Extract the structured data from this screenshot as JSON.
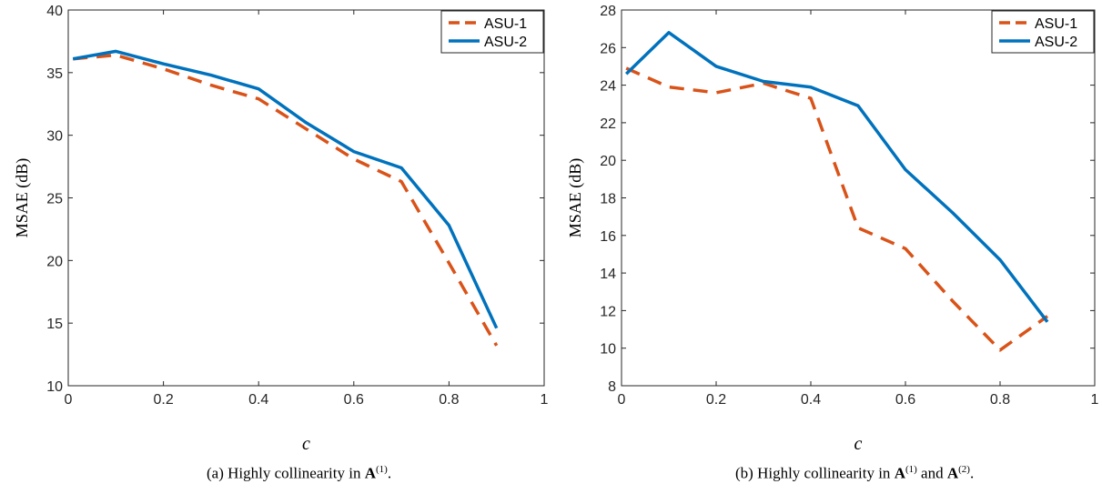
{
  "chart_data": [
    {
      "type": "line",
      "panel": "a",
      "xlabel": "c",
      "ylabel": "MSAE (dB)",
      "xlim": [
        0,
        1
      ],
      "ylim": [
        10,
        40
      ],
      "xticks": [
        0,
        0.2,
        0.4,
        0.6,
        0.8,
        1
      ],
      "xtick_labels": [
        "0",
        "0.2",
        "0.4",
        "0.6",
        "0.8",
        "1"
      ],
      "yticks": [
        10,
        15,
        20,
        25,
        30,
        35,
        40
      ],
      "ytick_labels": [
        "10",
        "15",
        "20",
        "25",
        "30",
        "35",
        "40"
      ],
      "x": [
        0.01,
        0.1,
        0.2,
        0.3,
        0.4,
        0.5,
        0.6,
        0.7,
        0.8,
        0.9
      ],
      "series": [
        {
          "name": "ASU-1",
          "style": "dashed",
          "color": "#D95319",
          "values": [
            36.1,
            36.4,
            35.3,
            34.0,
            32.9,
            30.5,
            28.1,
            26.3,
            19.8,
            13.2
          ]
        },
        {
          "name": "ASU-2",
          "style": "solid",
          "color": "#0072BD",
          "values": [
            36.1,
            36.7,
            35.7,
            34.8,
            33.7,
            31.0,
            28.7,
            27.4,
            22.8,
            14.6
          ]
        }
      ],
      "legend": "top-right",
      "grid": false,
      "caption": {
        "prefix": "(a)  Highly collinearity in ",
        "matrix": "A",
        "sup1": "(1)",
        "suffix": "."
      }
    },
    {
      "type": "line",
      "panel": "b",
      "xlabel": "c",
      "ylabel": "MSAE (dB)",
      "xlim": [
        0,
        1
      ],
      "ylim": [
        8,
        28
      ],
      "xticks": [
        0,
        0.2,
        0.4,
        0.6,
        0.8,
        1
      ],
      "xtick_labels": [
        "0",
        "0.2",
        "0.4",
        "0.6",
        "0.8",
        "1"
      ],
      "yticks": [
        8,
        10,
        12,
        14,
        16,
        18,
        20,
        22,
        24,
        26,
        28
      ],
      "ytick_labels": [
        "8",
        "10",
        "12",
        "14",
        "16",
        "18",
        "20",
        "22",
        "24",
        "26",
        "28"
      ],
      "x": [
        0.01,
        0.1,
        0.2,
        0.3,
        0.4,
        0.5,
        0.6,
        0.7,
        0.8,
        0.9
      ],
      "series": [
        {
          "name": "ASU-1",
          "style": "dashed",
          "color": "#D95319",
          "values": [
            24.9,
            23.9,
            23.6,
            24.1,
            23.3,
            16.4,
            15.3,
            12.5,
            9.9,
            11.7
          ]
        },
        {
          "name": "ASU-2",
          "style": "solid",
          "color": "#0072BD",
          "values": [
            24.6,
            26.8,
            25.0,
            24.2,
            23.9,
            22.9,
            19.5,
            17.2,
            14.7,
            11.4
          ]
        }
      ],
      "legend": "top-right",
      "grid": false,
      "caption": {
        "prefix": "(b)  Highly collinearity in ",
        "matrix": "A",
        "sup1": "(1)",
        "middle": " and ",
        "matrix2": "A",
        "sup2": "(2)",
        "suffix": "."
      }
    }
  ]
}
